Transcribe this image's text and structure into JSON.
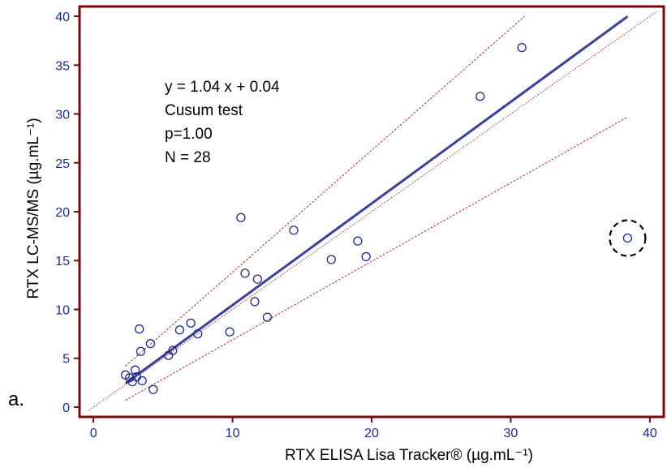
{
  "chart_data": {
    "type": "scatter",
    "panel_label": "a.",
    "xlabel": "RTX ELISA Lisa Tracker® (µg.mL⁻¹)",
    "ylabel": "RTX LC-MS/MS (µg.mL⁻¹)",
    "xlim": [
      -1,
      41
    ],
    "ylim": [
      -1,
      41
    ],
    "xticks": [
      0,
      10,
      20,
      30,
      40
    ],
    "yticks": [
      0,
      5,
      10,
      15,
      20,
      25,
      30,
      35,
      40
    ],
    "grid": false,
    "annotation_lines": [
      "y = 1.04 x + 0.04",
      "Cusum test",
      "p=1.00",
      "N = 28"
    ],
    "points": {
      "x": [
        2.3,
        2.6,
        2.8,
        3.0,
        3.1,
        3.3,
        3.4,
        3.5,
        4.1,
        4.3,
        5.4,
        5.7,
        6.2,
        7.0,
        7.5,
        9.8,
        10.6,
        10.9,
        11.6,
        11.8,
        12.5,
        14.4,
        17.1,
        19.0,
        19.6,
        27.8,
        30.8,
        38.4
      ],
      "y": [
        3.3,
        3.0,
        2.6,
        3.8,
        3.1,
        8.0,
        5.7,
        2.7,
        6.5,
        1.8,
        5.3,
        5.8,
        7.9,
        8.6,
        7.5,
        7.7,
        19.4,
        13.7,
        10.8,
        13.1,
        9.2,
        18.1,
        15.1,
        17.0,
        15.4,
        31.8,
        36.8,
        17.3
      ]
    },
    "outlier_index": 27,
    "regression_line": {
      "x": [
        2.3,
        38.4
      ],
      "y": [
        2.43,
        39.98
      ]
    },
    "upper_ci": {
      "x": [
        2.3,
        31.0
      ],
      "y": [
        4.2,
        40.0
      ]
    },
    "identity_line": {
      "x": [
        -0.3,
        40.5
      ],
      "y": [
        -0.3,
        40.5
      ]
    },
    "lower_ci": {
      "x": [
        2.3,
        38.4
      ],
      "y": [
        0.7,
        29.7
      ]
    },
    "colors": {
      "axis": "#7a0a0a",
      "points": "#1f2a8c",
      "regression": "#3a3f9e",
      "ci_lines": "#b22222",
      "tick_labels": "#1f2a8c"
    }
  }
}
